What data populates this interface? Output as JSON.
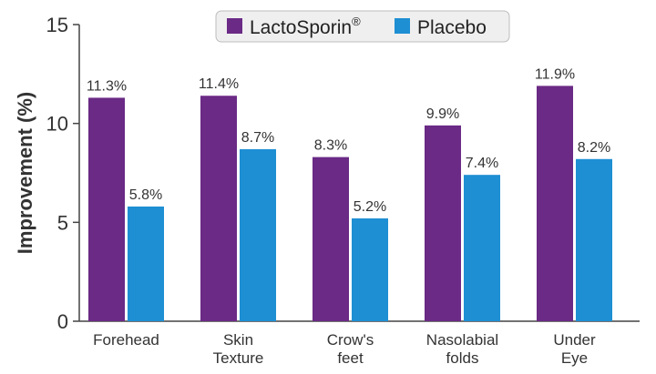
{
  "chart_data": {
    "type": "bar",
    "categories": [
      [
        "Forehead"
      ],
      [
        "Skin",
        "Texture"
      ],
      [
        "Crow's",
        "feet"
      ],
      [
        "Nasolabial",
        "folds"
      ],
      [
        "Under",
        "Eye"
      ]
    ],
    "series": [
      {
        "name": "LactoSporin",
        "name_superscript": "®",
        "color": "#6a2a85",
        "values": [
          11.3,
          11.4,
          8.3,
          9.9,
          11.9
        ],
        "labels": [
          "11.3%",
          "11.4%",
          "8.3%",
          "9.9%",
          "11.9%"
        ]
      },
      {
        "name": "Placebo",
        "color": "#1e8fd3",
        "values": [
          5.8,
          8.7,
          5.2,
          7.4,
          8.2
        ],
        "labels": [
          "5.8%",
          "8.7%",
          "5.2%",
          "7.4%",
          "8.2%"
        ]
      }
    ],
    "ylabel": "Improvement (%)",
    "ylim": [
      0,
      15
    ],
    "yticks": [
      "0",
      "5",
      "10",
      "15"
    ],
    "grid": false,
    "legend_position": "top-center"
  }
}
